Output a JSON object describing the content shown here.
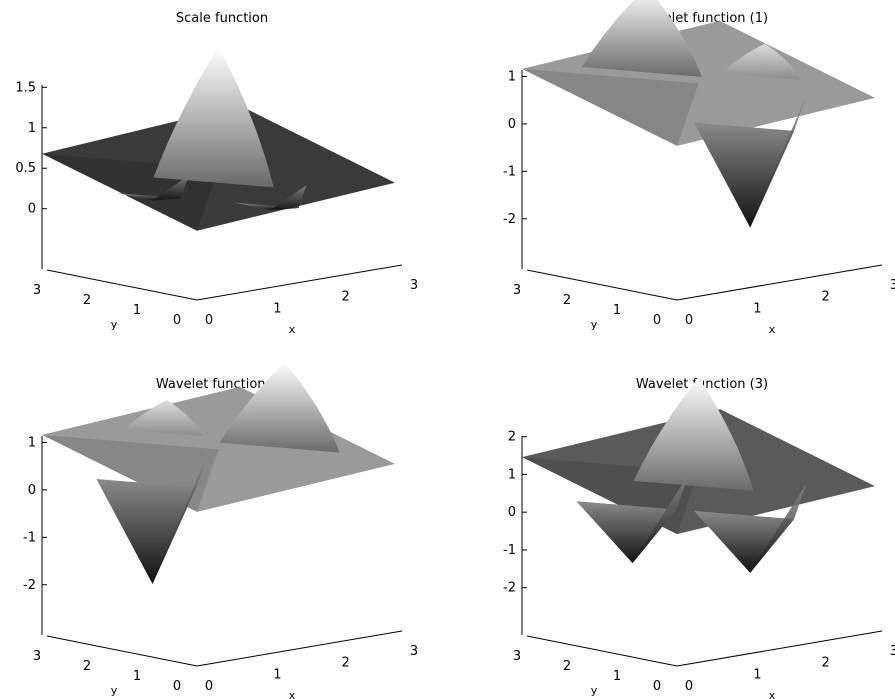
{
  "chart_data": [
    {
      "type": "surface",
      "title": "Scale function",
      "xlabel": "x",
      "ylabel": "y",
      "xticks": [
        "0",
        "1",
        "2",
        "3"
      ],
      "yticks": [
        "0",
        "1",
        "2",
        "3"
      ],
      "zticks": [
        "0",
        "0.5",
        "1",
        "1.5"
      ],
      "xlim": [
        0,
        3
      ],
      "ylim": [
        0,
        3
      ],
      "zlim": [
        -0.3,
        1.8
      ],
      "features": [
        {
          "kind": "peak",
          "x": 1.5,
          "y": 1.5,
          "z": 1.5
        },
        {
          "kind": "trough",
          "x": 1.5,
          "y": 0.5,
          "z": -0.2
        },
        {
          "kind": "trough",
          "x": 0.5,
          "y": 1.5,
          "z": -0.2
        }
      ]
    },
    {
      "type": "surface",
      "title": "Wavelet function (1)",
      "xlabel": "x",
      "ylabel": "y",
      "xticks": [
        "0",
        "1",
        "2",
        "3"
      ],
      "yticks": [
        "0",
        "1",
        "2",
        "3"
      ],
      "zticks": [
        "-2",
        "-1",
        "0",
        "1"
      ],
      "xlim": [
        0,
        3
      ],
      "ylim": [
        0,
        3
      ],
      "zlim": [
        -2.3,
        1.6
      ],
      "features": [
        {
          "kind": "peak",
          "x": 1.5,
          "y": 2.5,
          "z": 1.5
        },
        {
          "kind": "trough",
          "x": 1.5,
          "y": 0.5,
          "z": -2.5
        },
        {
          "kind": "peak",
          "x": 2.5,
          "y": 1.5,
          "z": 0.5
        }
      ]
    },
    {
      "type": "surface",
      "title": "Wavelet function (2)",
      "xlabel": "x",
      "ylabel": "y",
      "xticks": [
        "0",
        "1",
        "2",
        "3"
      ],
      "yticks": [
        "0",
        "1",
        "2",
        "3"
      ],
      "zticks": [
        "-2",
        "-1",
        "0",
        "1"
      ],
      "xlim": [
        0,
        3
      ],
      "ylim": [
        0,
        3
      ],
      "zlim": [
        -2.3,
        1.6
      ],
      "features": [
        {
          "kind": "peak",
          "x": 2.5,
          "y": 1.5,
          "z": 1.5
        },
        {
          "kind": "trough",
          "x": 0.5,
          "y": 1.5,
          "z": -2.5
        },
        {
          "kind": "peak",
          "x": 1.5,
          "y": 2.5,
          "z": 0.5
        }
      ]
    },
    {
      "type": "surface",
      "title": "Wavelet function (3)",
      "xlabel": "x",
      "ylabel": "y",
      "xticks": [
        "0",
        "1",
        "2",
        "3"
      ],
      "yticks": [
        "0",
        "1",
        "2",
        "3"
      ],
      "zticks": [
        "-2",
        "-1",
        "0",
        "1",
        "2"
      ],
      "xlim": [
        0,
        3
      ],
      "ylim": [
        0,
        3
      ],
      "zlim": [
        -2.3,
        2.6
      ],
      "features": [
        {
          "kind": "peak",
          "x": 1.5,
          "y": 1.5,
          "z": 2.5
        },
        {
          "kind": "trough",
          "x": 1.5,
          "y": 0.5,
          "z": -2.0
        },
        {
          "kind": "trough",
          "x": 0.5,
          "y": 1.5,
          "z": -2.0
        }
      ]
    }
  ]
}
